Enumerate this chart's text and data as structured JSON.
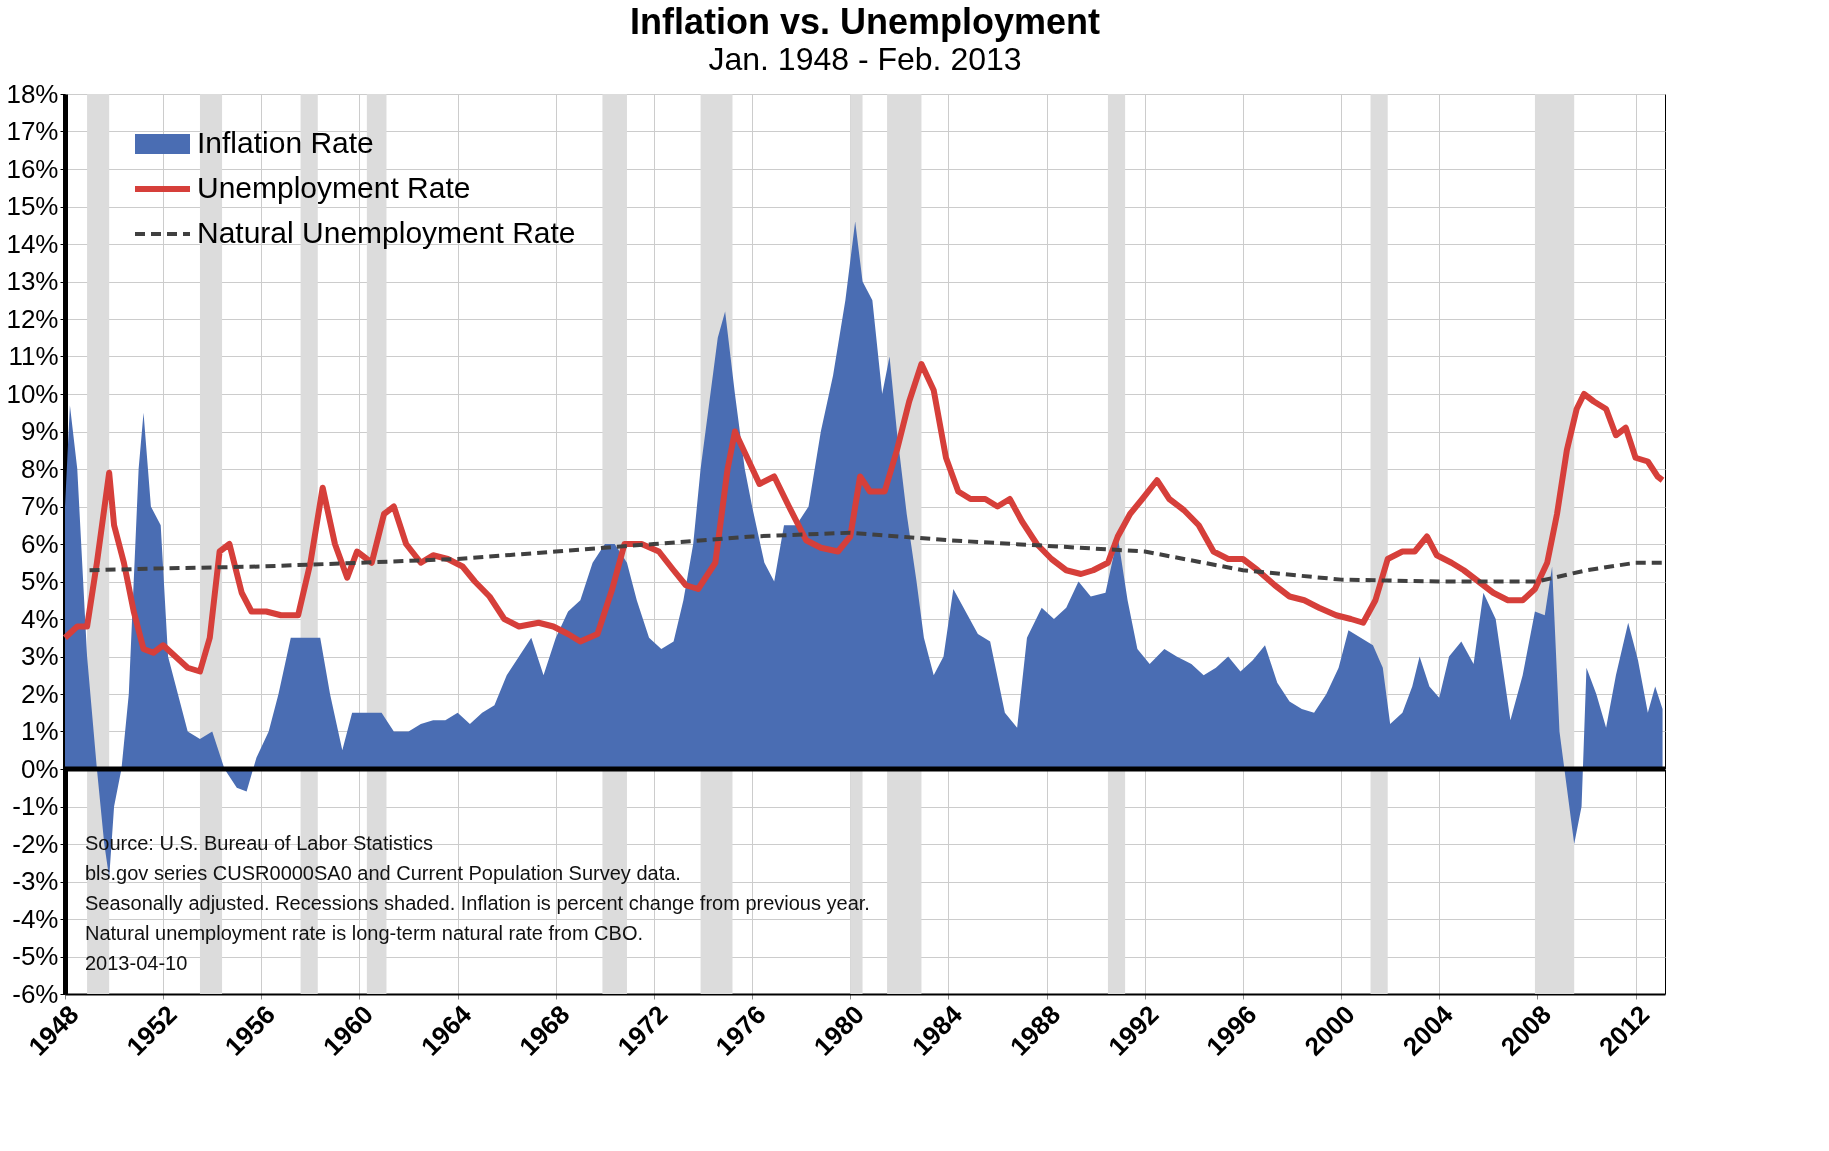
{
  "chart_data": {
    "type": "line",
    "title": "Inflation vs. Unemployment",
    "subtitle": "Jan. 1948 - Feb. 2013",
    "xlim": [
      1948,
      2013.2
    ],
    "xticks": [
      1948,
      1952,
      1956,
      1960,
      1964,
      1968,
      1972,
      1976,
      1980,
      1984,
      1988,
      1992,
      1996,
      2000,
      2004,
      2008,
      2012
    ],
    "ylim": [
      -6,
      18
    ],
    "yticks": [
      {
        "value": -6,
        "label": "-6%"
      },
      {
        "value": -5,
        "label": "-5%"
      },
      {
        "value": -4,
        "label": "-4%"
      },
      {
        "value": -3,
        "label": "-3%"
      },
      {
        "value": -2,
        "label": "-2%"
      },
      {
        "value": -1,
        "label": "-1%"
      },
      {
        "value": 0,
        "label": "0%"
      },
      {
        "value": 1,
        "label": "1%"
      },
      {
        "value": 2,
        "label": "2%"
      },
      {
        "value": 3,
        "label": "3%"
      },
      {
        "value": 4,
        "label": "4%"
      },
      {
        "value": 5,
        "label": "5%"
      },
      {
        "value": 6,
        "label": "6%"
      },
      {
        "value": 7,
        "label": "7%"
      },
      {
        "value": 8,
        "label": "8%"
      },
      {
        "value": 9,
        "label": "9%"
      },
      {
        "value": 10,
        "label": "10%"
      },
      {
        "value": 11,
        "label": "11%"
      },
      {
        "value": 12,
        "label": "12%"
      },
      {
        "value": 13,
        "label": "13%"
      },
      {
        "value": 14,
        "label": "14%"
      },
      {
        "value": 15,
        "label": "15%"
      },
      {
        "value": 16,
        "label": "16%"
      },
      {
        "value": 17,
        "label": "17%"
      },
      {
        "value": 18,
        "label": "18%"
      }
    ],
    "grid": true,
    "legend": "top left",
    "marker": "none",
    "series": [
      {
        "name": "Inflation Rate",
        "type": "area",
        "color": "#4a6db3",
        "x": [
          1948.0,
          1948.2,
          1948.5,
          1948.9,
          1949.3,
          1949.6,
          1949.8,
          1950.0,
          1950.3,
          1950.6,
          1951.0,
          1951.2,
          1951.5,
          1951.9,
          1952.2,
          1952.6,
          1953.0,
          1953.5,
          1954.0,
          1954.5,
          1955.0,
          1955.4,
          1955.8,
          1956.3,
          1956.7,
          1957.2,
          1957.6,
          1958.0,
          1958.4,
          1958.8,
          1959.3,
          1959.7,
          1960.3,
          1960.9,
          1961.4,
          1962.0,
          1962.5,
          1963.0,
          1963.5,
          1964.0,
          1964.5,
          1965.0,
          1965.5,
          1966.0,
          1966.5,
          1967.0,
          1967.5,
          1968.0,
          1968.5,
          1969.0,
          1969.5,
          1970.0,
          1970.4,
          1970.9,
          1971.3,
          1971.8,
          1972.3,
          1972.8,
          1973.2,
          1973.6,
          1973.9,
          1974.3,
          1974.6,
          1974.9,
          1975.3,
          1975.7,
          1976.0,
          1976.5,
          1976.9,
          1977.3,
          1977.8,
          1978.3,
          1978.8,
          1979.3,
          1979.8,
          1980.2,
          1980.5,
          1980.9,
          1981.3,
          1981.6,
          1981.9,
          1982.3,
          1982.7,
          1983.0,
          1983.4,
          1983.8,
          1984.2,
          1984.7,
          1985.2,
          1985.7,
          1986.3,
          1986.8,
          1987.2,
          1987.8,
          1988.3,
          1988.8,
          1989.3,
          1989.8,
          1990.4,
          1990.9,
          1991.3,
          1991.7,
          1992.2,
          1992.8,
          1993.3,
          1993.9,
          1994.4,
          1994.9,
          1995.4,
          1995.9,
          1996.4,
          1996.9,
          1997.4,
          1997.9,
          1998.4,
          1998.9,
          1999.4,
          1999.9,
          2000.3,
          2000.8,
          2001.3,
          2001.7,
          2002.0,
          2002.5,
          2002.9,
          2003.2,
          2003.6,
          2004.0,
          2004.4,
          2004.9,
          2005.4,
          2005.8,
          2006.3,
          2006.9,
          2007.4,
          2007.9,
          2008.3,
          2008.6,
          2008.9,
          2009.2,
          2009.5,
          2009.8,
          2010.0,
          2010.4,
          2010.8,
          2011.2,
          2011.7,
          2012.1,
          2012.5,
          2012.8,
          2013.1
        ],
        "values": [
          7,
          9.7,
          8,
          3,
          0,
          -2,
          -2.9,
          -1,
          0,
          2,
          8,
          9.5,
          7,
          6.5,
          3,
          2,
          1,
          0.8,
          1,
          0,
          -0.5,
          -0.6,
          0.3,
          1,
          2,
          3.5,
          3.5,
          3.5,
          3.5,
          2,
          0.5,
          1.5,
          1.5,
          1.5,
          1,
          1,
          1.2,
          1.3,
          1.3,
          1.5,
          1.2,
          1.5,
          1.7,
          2.5,
          3,
          3.5,
          2.5,
          3.5,
          4.2,
          4.5,
          5.5,
          6,
          6,
          5.5,
          4.5,
          3.5,
          3.2,
          3.4,
          4.5,
          6,
          8,
          10,
          11.5,
          12.2,
          10,
          8,
          7,
          5.5,
          5,
          6.5,
          6.5,
          7,
          9,
          10.5,
          12.5,
          14.6,
          13,
          12.5,
          10,
          11,
          9,
          6.8,
          5,
          3.5,
          2.5,
          3,
          4.8,
          4.2,
          3.6,
          3.4,
          1.5,
          1.1,
          3.5,
          4.3,
          4,
          4.3,
          5,
          4.6,
          4.7,
          6.2,
          4.5,
          3.2,
          2.8,
          3.2,
          3,
          2.8,
          2.5,
          2.7,
          3,
          2.6,
          2.9,
          3.3,
          2.3,
          1.8,
          1.6,
          1.5,
          2,
          2.7,
          3.7,
          3.5,
          3.3,
          2.7,
          1.2,
          1.5,
          2.2,
          3,
          2.2,
          1.9,
          3,
          3.4,
          2.8,
          4.7,
          4,
          1.3,
          2.5,
          4.2,
          4.1,
          5.4,
          1,
          -0.5,
          -2,
          -1,
          2.7,
          2,
          1.1,
          2.5,
          3.9,
          2.9,
          1.5,
          2.2,
          1.6
        ]
      },
      {
        "name": "Unemployment Rate",
        "color": "#d63f3a",
        "line_style": "solid",
        "x": [
          1948.0,
          1948.5,
          1948.9,
          1949.3,
          1949.8,
          1950.0,
          1950.4,
          1950.8,
          1951.2,
          1951.6,
          1952.0,
          1952.5,
          1953.0,
          1953.5,
          1953.9,
          1954.3,
          1954.7,
          1955.2,
          1955.6,
          1956.2,
          1956.8,
          1957.5,
          1958.0,
          1958.5,
          1959.0,
          1959.5,
          1959.9,
          1960.5,
          1961.0,
          1961.4,
          1961.9,
          1962.5,
          1963.0,
          1963.6,
          1964.2,
          1964.7,
          1965.3,
          1965.9,
          1966.5,
          1967.3,
          1967.9,
          1968.5,
          1969.0,
          1969.7,
          1970.3,
          1970.8,
          1971.5,
          1972.2,
          1972.8,
          1973.3,
          1973.8,
          1974.5,
          1975.0,
          1975.3,
          1975.8,
          1976.3,
          1976.9,
          1977.5,
          1978.2,
          1978.8,
          1979.5,
          1980.0,
          1980.4,
          1980.8,
          1981.4,
          1981.9,
          1982.4,
          1982.9,
          1983.4,
          1983.9,
          1984.4,
          1984.9,
          1985.5,
          1986.0,
          1986.5,
          1987.0,
          1987.6,
          1988.2,
          1988.8,
          1989.4,
          1989.9,
          1990.5,
          1990.9,
          1991.4,
          1991.9,
          1992.5,
          1993.0,
          1993.6,
          1994.2,
          1994.8,
          1995.4,
          1996.0,
          1996.6,
          1997.3,
          1997.9,
          1998.5,
          1999.1,
          1999.8,
          2000.4,
          2000.9,
          2001.4,
          2001.9,
          2002.5,
          2003.0,
          2003.5,
          2003.9,
          2004.5,
          2005.0,
          2005.6,
          2006.2,
          2006.8,
          2007.4,
          2007.9,
          2008.4,
          2008.8,
          2009.2,
          2009.6,
          2009.9,
          2010.3,
          2010.8,
          2011.2,
          2011.6,
          2012.0,
          2012.5,
          2012.9,
          2013.1
        ],
        "values": [
          3.5,
          3.8,
          3.8,
          5.5,
          7.9,
          6.5,
          5.5,
          4.2,
          3.2,
          3.1,
          3.3,
          3,
          2.7,
          2.6,
          3.5,
          5.8,
          6,
          4.7,
          4.2,
          4.2,
          4.1,
          4.1,
          5.5,
          7.5,
          6,
          5.1,
          5.8,
          5.5,
          6.8,
          7,
          6,
          5.5,
          5.7,
          5.6,
          5.4,
          5,
          4.6,
          4,
          3.8,
          3.9,
          3.8,
          3.6,
          3.4,
          3.6,
          4.8,
          6,
          6,
          5.8,
          5.3,
          4.9,
          4.8,
          5.5,
          8,
          9,
          8.3,
          7.6,
          7.8,
          7,
          6.1,
          5.9,
          5.8,
          6.2,
          7.8,
          7.4,
          7.4,
          8.5,
          9.8,
          10.8,
          10.1,
          8.3,
          7.4,
          7.2,
          7.2,
          7,
          7.2,
          6.6,
          6,
          5.6,
          5.3,
          5.2,
          5.3,
          5.5,
          6.2,
          6.8,
          7.2,
          7.7,
          7.2,
          6.9,
          6.5,
          5.8,
          5.6,
          5.6,
          5.3,
          4.9,
          4.6,
          4.5,
          4.3,
          4.1,
          4,
          3.9,
          4.5,
          5.6,
          5.8,
          5.8,
          6.2,
          5.7,
          5.5,
          5.3,
          5,
          4.7,
          4.5,
          4.5,
          4.8,
          5.5,
          6.8,
          8.5,
          9.6,
          10,
          9.8,
          9.6,
          8.9,
          9.1,
          8.3,
          8.2,
          7.8,
          7.7
        ]
      },
      {
        "name": "Natural Unemployment Rate",
        "color": "#404040",
        "line_style": "dashed",
        "x": [
          1949,
          1952,
          1956,
          1960,
          1964,
          1968,
          1972,
          1976,
          1980,
          1984,
          1988,
          1992,
          1996,
          2000,
          2004,
          2008,
          2010,
          2012,
          2013.1
        ],
        "values": [
          5.3,
          5.35,
          5.4,
          5.5,
          5.6,
          5.8,
          6,
          6.2,
          6.3,
          6.1,
          5.95,
          5.8,
          5.3,
          5.05,
          5,
          5,
          5.3,
          5.5,
          5.5
        ]
      }
    ],
    "bands": [
      {
        "axis": "x",
        "from": 1948.9,
        "to": 1949.8,
        "color": "#dcdcdc"
      },
      {
        "axis": "x",
        "from": 1953.5,
        "to": 1954.4,
        "color": "#dcdcdc"
      },
      {
        "axis": "x",
        "from": 1957.6,
        "to": 1958.3,
        "color": "#dcdcdc"
      },
      {
        "axis": "x",
        "from": 1960.3,
        "to": 1961.1,
        "color": "#dcdcdc"
      },
      {
        "axis": "x",
        "from": 1969.9,
        "to": 1970.9,
        "color": "#dcdcdc"
      },
      {
        "axis": "x",
        "from": 1973.9,
        "to": 1975.2,
        "color": "#dcdcdc"
      },
      {
        "axis": "x",
        "from": 1980.0,
        "to": 1980.5,
        "color": "#dcdcdc"
      },
      {
        "axis": "x",
        "from": 1981.5,
        "to": 1982.9,
        "color": "#dcdcdc"
      },
      {
        "axis": "x",
        "from": 1990.5,
        "to": 1991.2,
        "color": "#dcdcdc"
      },
      {
        "axis": "x",
        "from": 2001.2,
        "to": 2001.9,
        "color": "#dcdcdc"
      },
      {
        "axis": "x",
        "from": 2007.9,
        "to": 2009.5,
        "color": "#dcdcdc"
      }
    ],
    "ref_lines": [
      {
        "axis": "y",
        "value": 0,
        "color": "#000000"
      }
    ],
    "annotations": [
      "Source: U.S. Bureau of Labor Statistics",
      "bls.gov series CUSR0000SA0 and Current Population Survey data.",
      "Seasonally adjusted. Recessions shaded. Inflation is percent change from previous year.",
      "Natural unemployment rate is long-term natural rate from CBO.",
      "2013-04-10"
    ]
  }
}
